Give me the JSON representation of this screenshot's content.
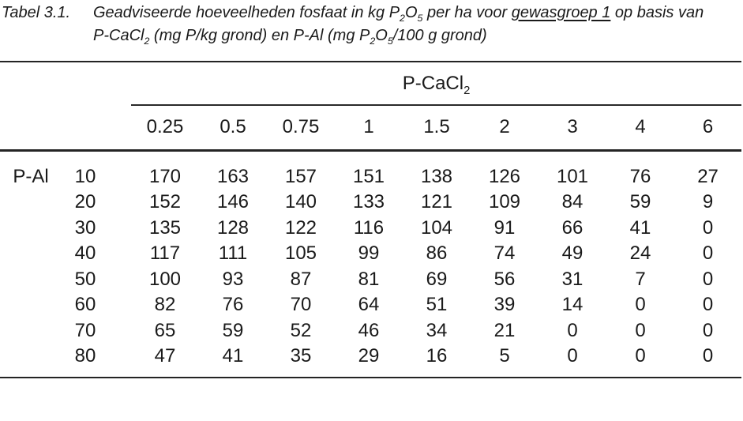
{
  "page": {
    "background": "#ffffff",
    "text_color": "#1a1a1a",
    "rule_color": "#242424"
  },
  "caption": {
    "label": "Tabel 3.1.",
    "line1_segments": [
      {
        "t": "Geadviseerde hoeveelheden fosfaat in kg P"
      },
      {
        "t": "2",
        "sub": true
      },
      {
        "t": "O"
      },
      {
        "t": "5",
        "sub": true
      },
      {
        "t": " per ha voor "
      },
      {
        "t": "gewasgroep 1",
        "underline": true
      },
      {
        "t": " op basis van"
      }
    ],
    "line2_segments": [
      {
        "t": "P-CaCl"
      },
      {
        "t": "2",
        "sub": true
      },
      {
        "t": " (mg P/kg grond) en P-Al (mg P"
      },
      {
        "t": "2",
        "sub": true
      },
      {
        "t": "O"
      },
      {
        "t": "5",
        "sub": true
      },
      {
        "t": "/100 g grond)"
      }
    ]
  },
  "table": {
    "group_header_segments": [
      {
        "t": "P-CaCl"
      },
      {
        "t": "2",
        "sub": true
      }
    ],
    "col_headers": [
      "0.25",
      "0.5",
      "0.75",
      "1",
      "1.5",
      "2",
      "3",
      "4",
      "6"
    ],
    "row_axis_label": "P-Al",
    "rows": [
      {
        "key": "10",
        "values": [
          170,
          163,
          157,
          151,
          138,
          126,
          101,
          76,
          27
        ]
      },
      {
        "key": "20",
        "values": [
          152,
          146,
          140,
          133,
          121,
          109,
          84,
          59,
          9
        ]
      },
      {
        "key": "30",
        "values": [
          135,
          128,
          122,
          116,
          104,
          91,
          66,
          41,
          0
        ]
      },
      {
        "key": "40",
        "values": [
          117,
          111,
          105,
          99,
          86,
          74,
          49,
          24,
          0
        ]
      },
      {
        "key": "50",
        "values": [
          100,
          93,
          87,
          81,
          69,
          56,
          31,
          7,
          0
        ]
      },
      {
        "key": "60",
        "values": [
          82,
          76,
          70,
          64,
          51,
          39,
          14,
          0,
          0
        ]
      },
      {
        "key": "70",
        "values": [
          65,
          59,
          52,
          46,
          34,
          21,
          0,
          0,
          0
        ]
      },
      {
        "key": "80",
        "values": [
          47,
          41,
          35,
          29,
          16,
          5,
          0,
          0,
          0
        ]
      }
    ]
  }
}
